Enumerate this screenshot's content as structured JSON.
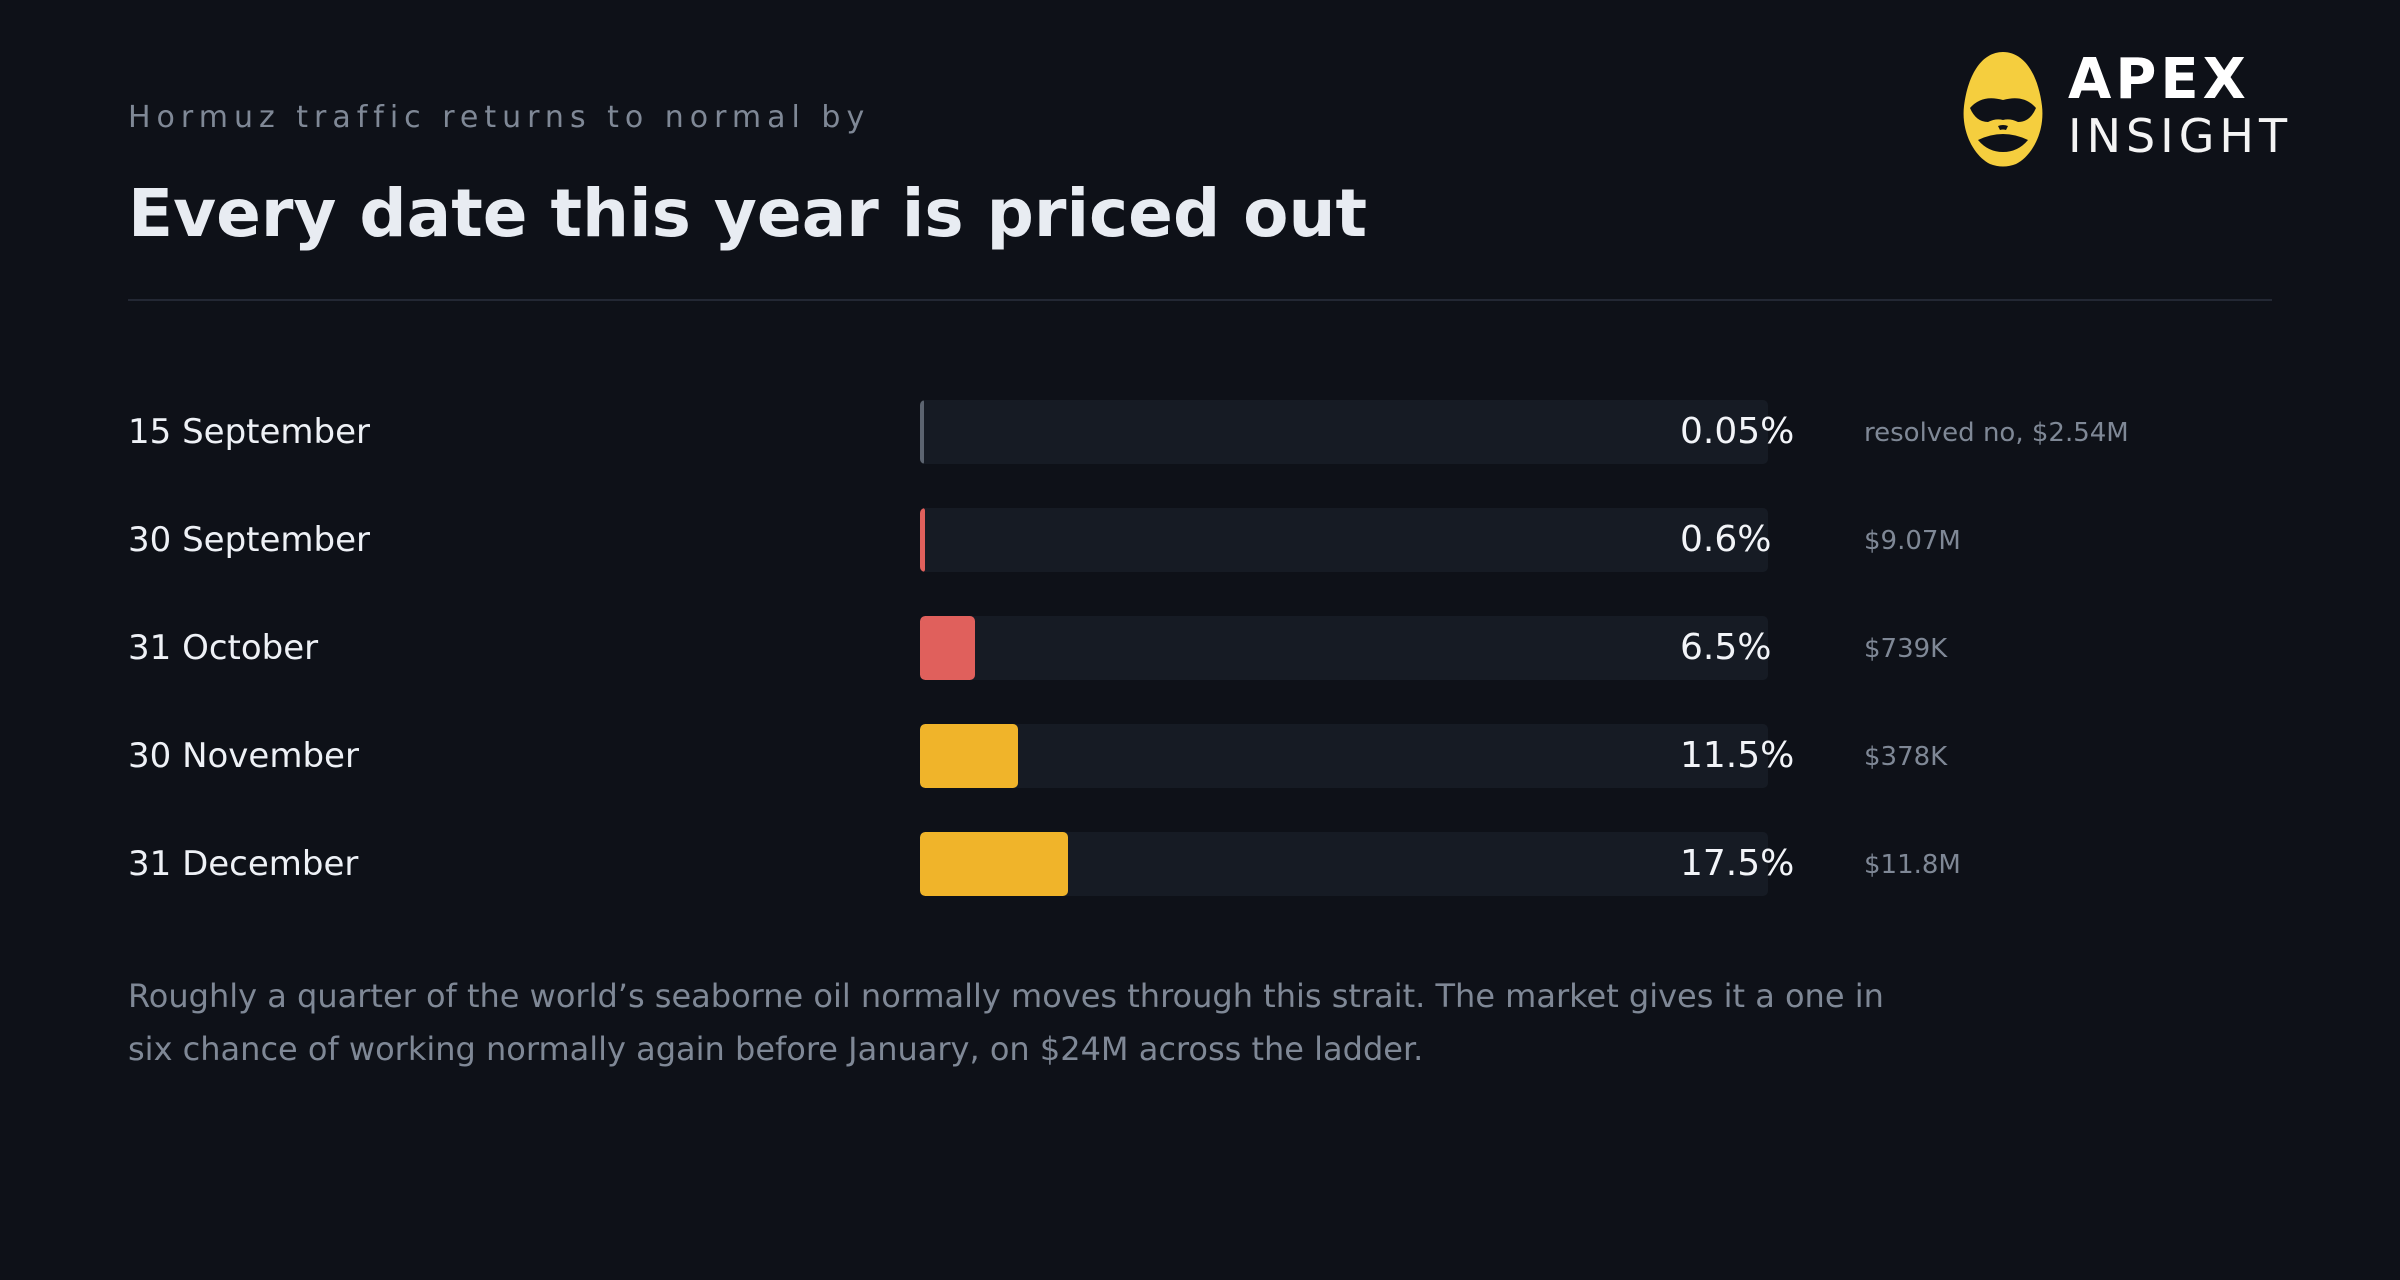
{
  "header": {
    "kicker": "Hormuz traffic returns to normal by",
    "title": "Every date this year is priced out"
  },
  "logo": {
    "icon": "helmet-icon",
    "wordmark_top": "APEX",
    "wordmark_bottom": "INSIGHT",
    "brand_color": "#f5ce3e"
  },
  "chart_data": {
    "type": "bar",
    "orientation": "horizontal",
    "value_unit": "%",
    "xlim": [
      0,
      100
    ],
    "categories": [
      "15 September",
      "30 September",
      "31 October",
      "30 November",
      "31 December"
    ],
    "values": [
      0.05,
      0.6,
      6.5,
      11.5,
      17.5
    ],
    "value_labels": [
      "0.05%",
      "0.6%",
      "6.5%",
      "11.5%",
      "17.5%"
    ],
    "notes": [
      "resolved no, $2.54M",
      "$9.07M",
      "$739K",
      "$378K",
      "$11.8M"
    ],
    "bar_colors": [
      "#5c6470",
      "#e0605c",
      "#e0605c",
      "#f0b42a",
      "#f0b42a"
    ],
    "track_color": "#161b24"
  },
  "footnote": "Roughly a quarter of the world’s seaborne oil normally moves through this strait. The market gives it a one in six chance of working normally again before January, on $24M across the ladder."
}
